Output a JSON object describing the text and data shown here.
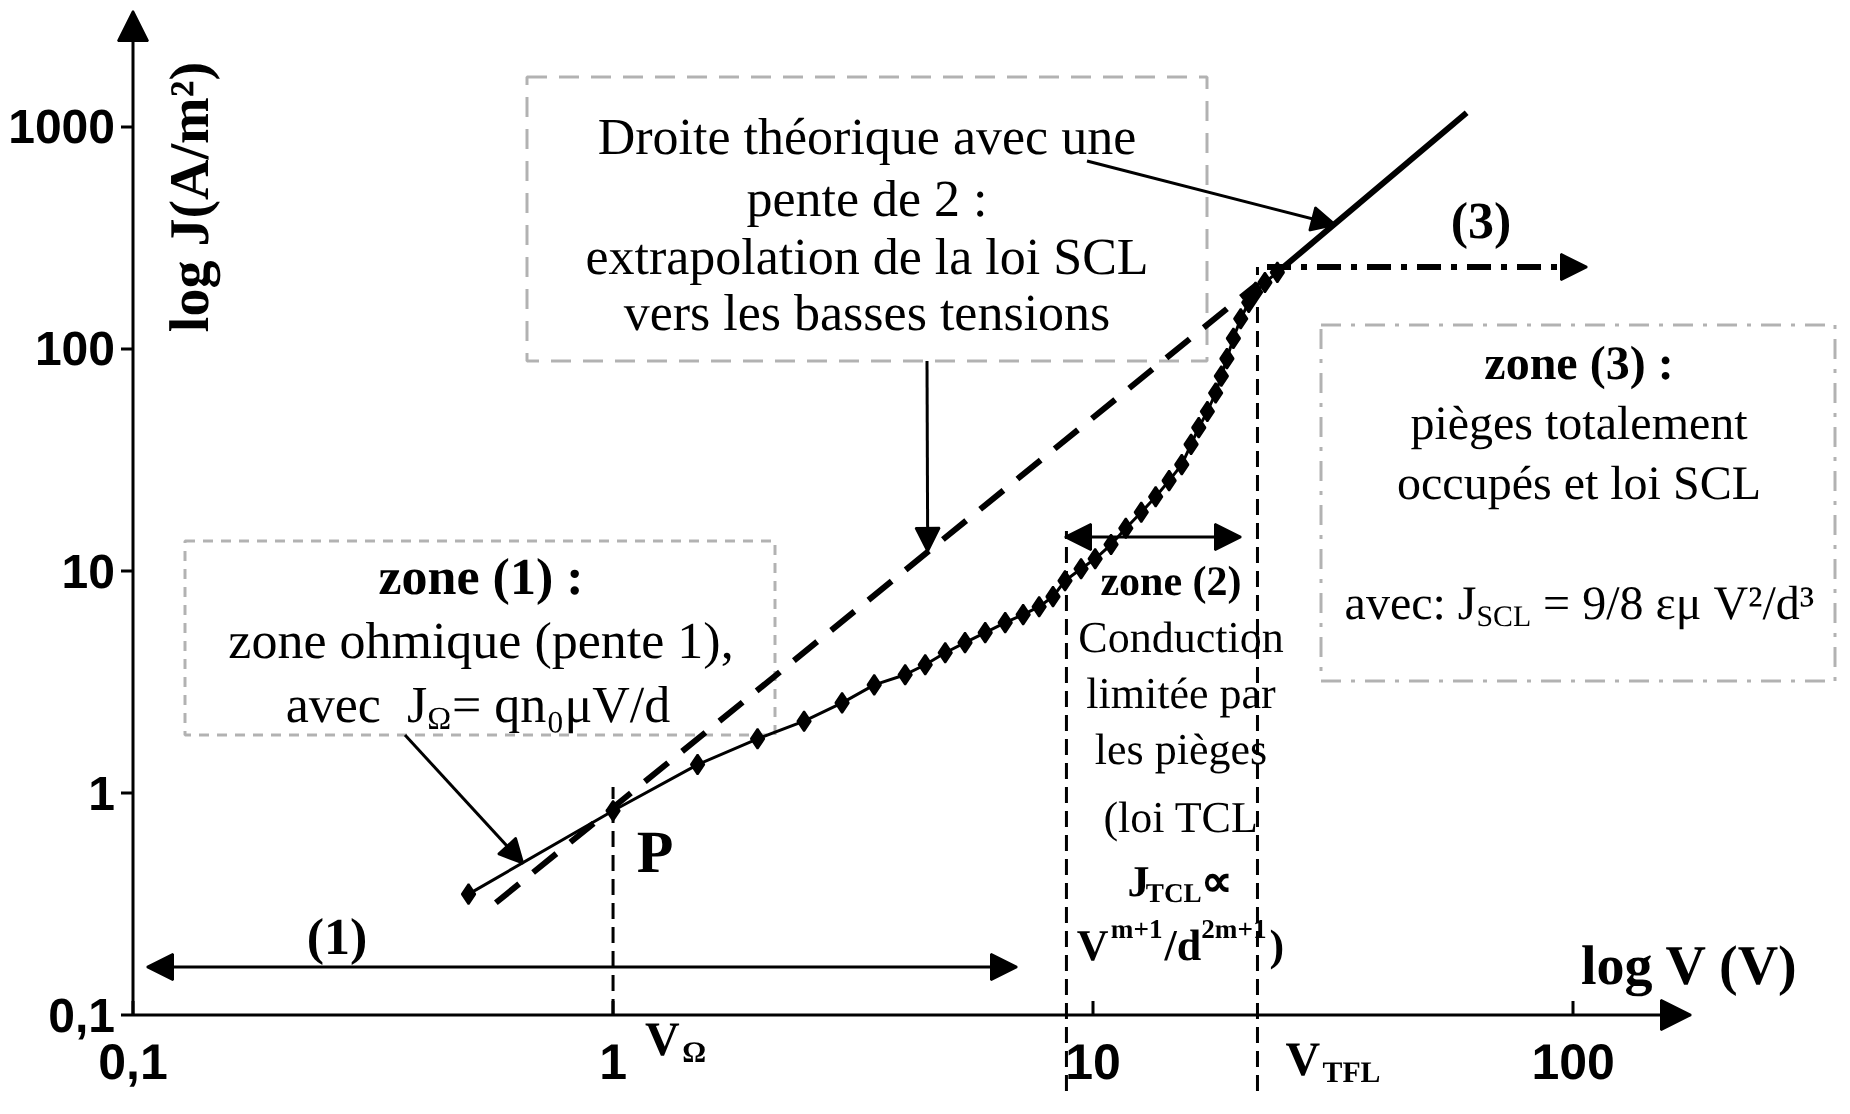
{
  "chart_data": {
    "type": "line",
    "xlabel": "log V (V)",
    "ylabel": "log J(A/m²)",
    "log": "xy",
    "xlim": [
      0.1,
      176
    ],
    "ylim": [
      0.1,
      3300
    ],
    "xticks": [
      {
        "value": 0.1,
        "label": "0,1"
      },
      1,
      10,
      100
    ],
    "yticks": [
      {
        "value": 0.1,
        "label": "0,1"
      },
      1,
      10,
      100,
      1000
    ],
    "series": [
      {
        "color": "#000000",
        "marker": "diamond",
        "line_style": "solid",
        "x": [
          0.5,
          1.0,
          1.5,
          2.0,
          2.5,
          3.0,
          3.5,
          4.06,
          4.47,
          4.92,
          5.41,
          5.96,
          6.56,
          7.15,
          7.72,
          8.25,
          8.74,
          9.44,
          10.1,
          10.9,
          11.7,
          12.6,
          13.5,
          14.4,
          15.3,
          16.0,
          16.6,
          17.3,
          18.0,
          18.5,
          19.0,
          19.6,
          20.3,
          21.1,
          21.8,
          22.8,
          24.2
        ],
        "values": [
          0.35,
          0.83,
          1.34,
          1.75,
          2.1,
          2.54,
          3.06,
          3.4,
          3.77,
          4.27,
          4.74,
          5.26,
          5.83,
          6.34,
          6.88,
          7.64,
          9.0,
          10.2,
          11.3,
          13.1,
          15.5,
          18.3,
          21.5,
          25.4,
          30,
          37,
          44,
          52,
          63,
          75,
          90,
          111,
          136,
          161,
          179,
          198,
          220
        ]
      },
      {
        "color": "#000000",
        "marker": "none",
        "line_style": "dashed",
        "x": [
          0.57,
          22
        ],
        "values": [
          0.32,
          195
        ]
      },
      {
        "color": "#000000",
        "marker": "none",
        "line_style": "solid",
        "x": [
          24.2,
          60
        ],
        "values": [
          220,
          1150
        ]
      }
    ],
    "ref_lines": [
      {
        "axis": "x",
        "value": 1,
        "label": "V$_{Ω}$",
        "line_style": "dashed",
        "color": "#000000"
      },
      {
        "axis": "x",
        "value": 8.8,
        "line_style": "dashed",
        "color": "#000000"
      },
      {
        "axis": "x",
        "value": 22,
        "label": "V$_{TFL}$",
        "line_style": "dashed",
        "color": "#000000"
      }
    ],
    "annotations": [
      {
        "text": "Droite théorique avec une\npente de 2 :\nextrapolation de la loi SCL\nvers les basses tensions",
        "x": 32,
        "y": 360
      },
      {
        "text": "zone (1) :\nzone ohmique (pente 1),\navec  J$_{Ω}$= qn₀μV/d",
        "x": 0.65,
        "y": 0.48
      },
      "zone (3) :\npièges totalement\noccupés et loi SCL\navec: J$_{SCL}$ = 9/8 εμ V²/d³",
      "Conduction\nlimitée par\nles pièges\n(loi TCL\nJ$_{TCL}$∝\nV$^{m+1}$/d$^{2m+1}$)",
      {
        "text": "P",
        "x": 1,
        "y": 0.83
      },
      "(1)",
      "zone (2)",
      "(3)"
    ]
  }
}
